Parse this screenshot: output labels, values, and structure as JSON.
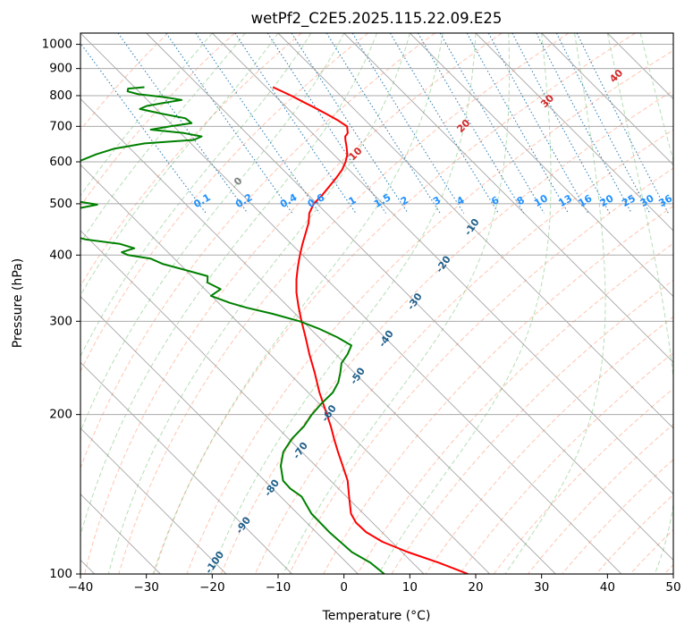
{
  "chart_data": {
    "type": "line",
    "title": "wetPf2_C2E5.2025.115.22.09.E25",
    "xlabel": "Temperature (°C)",
    "ylabel": "Pressure (hPa)",
    "xlim": [
      -40,
      50
    ],
    "ylim": [
      1050,
      100
    ],
    "y_scale": "log",
    "skew": "skew-T log-P",
    "grid": true,
    "x_ticks": [
      "−40",
      "−30",
      "−20",
      "−10",
      "0",
      "10",
      "20",
      "30",
      "40",
      "50"
    ],
    "y_ticks": [
      "100",
      "200",
      "300",
      "400",
      "500",
      "600",
      "700",
      "800",
      "900",
      "1000"
    ],
    "colors": {
      "temperature": "#ff0000",
      "dewpoint": "#008000",
      "isotherm": "#888888",
      "dry_adiabat": "#ff7f50",
      "moist_adiabat": "#2ca02c",
      "mixing_ratio": "#1f77b4",
      "isotherm_label": "#1f5f8b",
      "mixing_label": "#1e90ff",
      "moist_label_warm": "#d62728",
      "moist_label_zero": "#808080"
    },
    "isotherm_labels": [
      "-100",
      "-90",
      "-80",
      "-70",
      "-60",
      "-50",
      "-40",
      "-30",
      "-20",
      "-10"
    ],
    "mixing_ratio_labels": [
      "0.1",
      "0.2",
      "0.4",
      "0.6",
      "1",
      "1.5",
      "2",
      "3",
      "4",
      "6",
      "8",
      "10",
      "13",
      "16",
      "20",
      "25",
      "30",
      "36"
    ],
    "moist_adiabat_labels": [
      "0",
      "10",
      "20",
      "30",
      "40"
    ],
    "series": [
      {
        "key": "temperature",
        "pressure": [
          830,
          820,
          800,
          780,
          760,
          740,
          720,
          700,
          680,
          670,
          660,
          640,
          620,
          600,
          580,
          560,
          540,
          520,
          500,
          480,
          460,
          440,
          420,
          400,
          380,
          360,
          340,
          320,
          300,
          280,
          260,
          240,
          220,
          200,
          190,
          180,
          170,
          160,
          150,
          140,
          130,
          125,
          120,
          115,
          110,
          105,
          100
        ],
        "temp": [
          -19.0,
          -18.5,
          -17.5,
          -16.7,
          -15.8,
          -15.0,
          -14.2,
          -13.7,
          -14.6,
          -15.5,
          -16.0,
          -16.9,
          -17.9,
          -19.3,
          -21.0,
          -23.1,
          -25.4,
          -27.8,
          -30.5,
          -32.6,
          -34.2,
          -36.2,
          -38.3,
          -40.4,
          -42.5,
          -44.6,
          -46.6,
          -48.4,
          -50.2,
          -52.0,
          -54.0,
          -56.0,
          -58.3,
          -60.5,
          -61.7,
          -63.1,
          -64.5,
          -65.9,
          -67.4,
          -69.6,
          -71.9,
          -72.5,
          -72.4,
          -71.4,
          -69.1,
          -66.0,
          -63.3
        ]
      },
      {
        "key": "dewpoint",
        "pressure": [
          830,
          825,
          815,
          805,
          795,
          785,
          775,
          765,
          755,
          740,
          725,
          710,
          700,
          690,
          680,
          670,
          660,
          650,
          635,
          620,
          605,
          590,
          575,
          562,
          555,
          548,
          540,
          534,
          528,
          520,
          512,
          505,
          498,
          490,
          482,
          475,
          468,
          462,
          456,
          450,
          446,
          440,
          434,
          428,
          420,
          412,
          405,
          400,
          394,
          385,
          375,
          365,
          355,
          345,
          335,
          325,
          318,
          310,
          300,
          290,
          280,
          270,
          260,
          250,
          240,
          230,
          220,
          210,
          200,
          190,
          180,
          170,
          160,
          150,
          145,
          140,
          130,
          120,
          110,
          105,
          100
        ],
        "temp": [
          -38.5,
          -41.2,
          -41.7,
          -40.5,
          -37.0,
          -34.8,
          -38.0,
          -41.0,
          -42.5,
          -40.0,
          -37.0,
          -36.8,
          -40.5,
          -44.0,
          -39.5,
          -37.3,
          -39.0,
          -47.0,
          -52.5,
          -56.0,
          -59.0,
          -62.0,
          -63.5,
          -62.5,
          -70.5,
          -74.5,
          -76.5,
          -78.5,
          -74.5,
          -70.5,
          -68.0,
          -66.0,
          -63.5,
          -67.0,
          -73.5,
          -76.5,
          -80.5,
          -83.5,
          -83.7,
          -84.0,
          -82.5,
          -78.0,
          -72.0,
          -70.5,
          -66.0,
          -64.5,
          -67.0,
          -66.5,
          -63.6,
          -62.6,
          -60.1,
          -57.6,
          -58.6,
          -57.6,
          -60.1,
          -58.3,
          -56.4,
          -53.5,
          -50.5,
          -48.6,
          -47.2,
          -46.3,
          -48.2,
          -50.5,
          -52.1,
          -53.9,
          -56.3,
          -59.6,
          -62.8,
          -65.8,
          -69.5,
          -72.8,
          -75.3,
          -77.2,
          -77.3,
          -76.8,
          -77.9,
          -78.0,
          -77.6,
          -76.4,
          -76.0
        ]
      }
    ]
  }
}
